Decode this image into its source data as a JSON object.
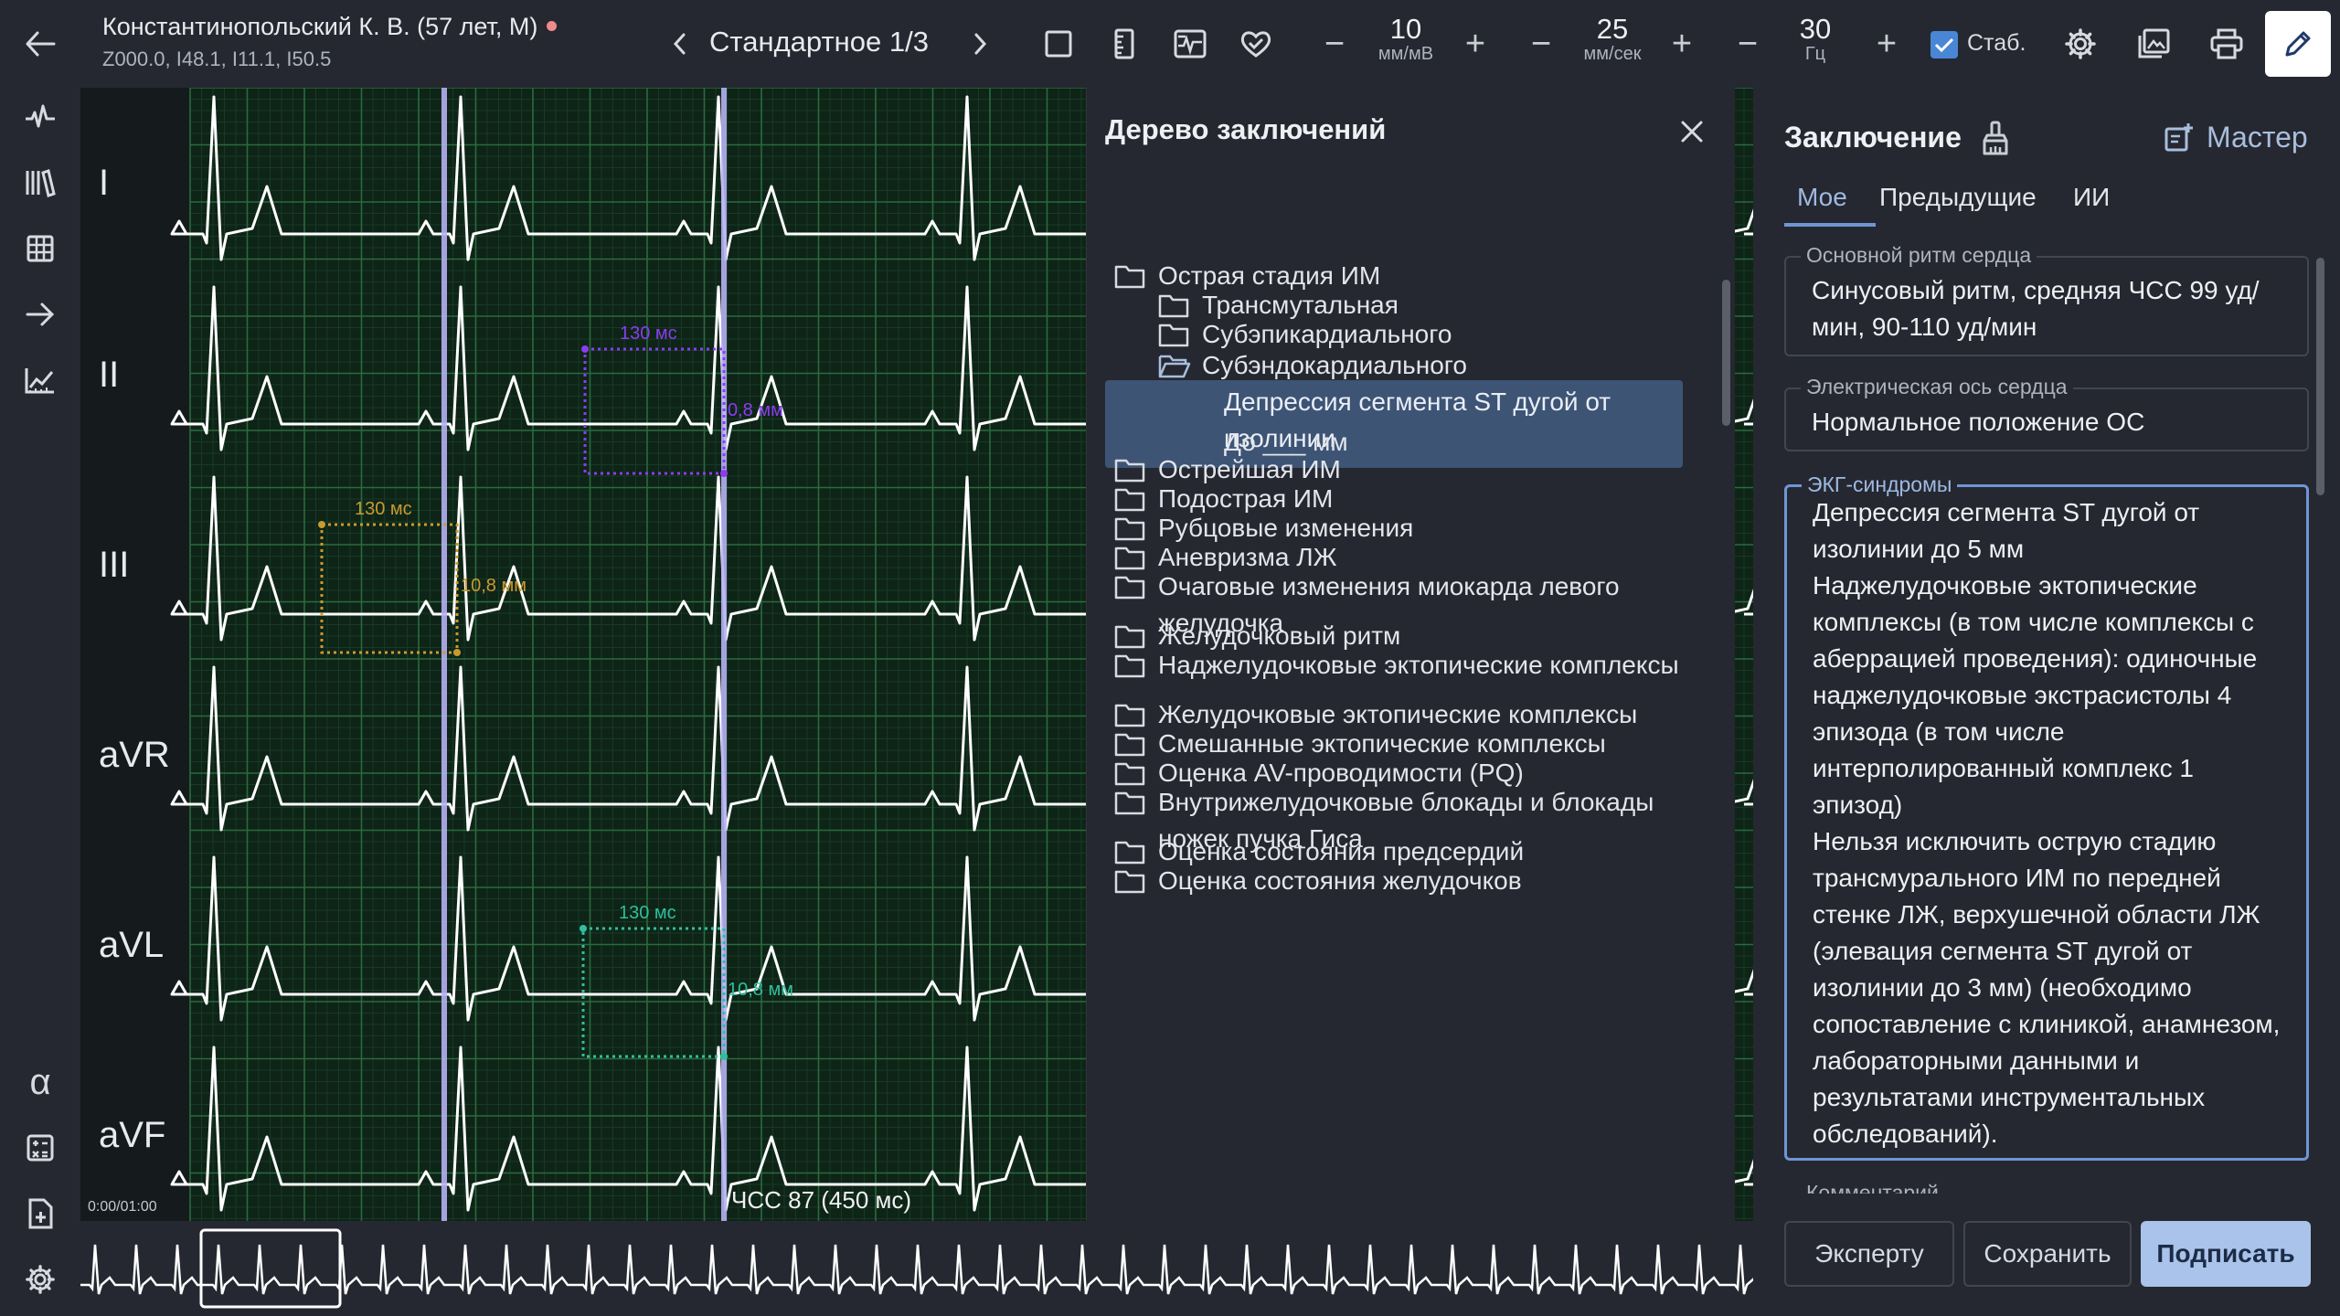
{
  "header": {
    "patient_name": "Константинопольский К. В. (57 лет, М)",
    "patient_codes": "Z000.0, I48.1, I11.1, I50.5",
    "status_color": "#f08a8a",
    "layout_name": "Стандартное 1/3",
    "gain": {
      "value": "10",
      "unit": "мм/мВ"
    },
    "speed": {
      "value": "25",
      "unit": "мм/сек"
    },
    "filter": {
      "value": "30",
      "unit": "Гц"
    },
    "stab_label": "Стаб.",
    "stab_checked": true,
    "icons": [
      "back-arrow-icon",
      "chevron-left-icon",
      "chevron-right-icon",
      "square-icon",
      "ruler-icon",
      "compare-icon",
      "heart-check-icon",
      "minus-icon",
      "plus-icon",
      "checkbox-icon",
      "gear-icon",
      "image-export-icon",
      "printer-icon",
      "pencil-icon"
    ]
  },
  "left_rail": {
    "icons": [
      "ecg-wave-icon",
      "library-icon",
      "grid-icon",
      "arrow-right-icon",
      "chart-trend-icon",
      "alpha-icon",
      "calculator-icon",
      "file-export-icon",
      "gear-icon"
    ],
    "alpha_glyph": "α"
  },
  "ecg": {
    "leads": [
      "I",
      "II",
      "III",
      "aVR",
      "aVL",
      "aVF"
    ],
    "time_position": "0:00/01:00",
    "heart_rate": "ЧСС 87 (450 мс)",
    "measurements": [
      {
        "lead": "II",
        "color": "#8b3cf0",
        "time": "130 мс",
        "amplitude": "0,8 мм"
      },
      {
        "lead": "III",
        "color": "#c99a2e",
        "time": "130 мс",
        "amplitude": "10,8 мм"
      },
      {
        "lead": "aVL",
        "color": "#2fbf9c",
        "time": "130 мс",
        "amplitude": "10,8 мм"
      }
    ],
    "grid_color": "#1c4a2a",
    "trace_color": "#ffffff",
    "cursor_color": "#b7b0f5"
  },
  "tree": {
    "title": "Дерево заключений",
    "items": [
      {
        "label": "Острая стадия ИМ",
        "level": 0,
        "icon": "folder-icon"
      },
      {
        "label": "Трансмутальная",
        "level": 1,
        "icon": "folder-icon"
      },
      {
        "label": "Субэпикардиального",
        "level": 1,
        "icon": "folder-icon"
      },
      {
        "label": "Субэндокардиального",
        "level": 1,
        "icon": "folder-open-icon"
      },
      {
        "label": "Депрессия сегмента ST дугой от изолинии",
        "level": 2,
        "icon": "",
        "selected": true
      },
      {
        "label": "До ___ мм",
        "level": 2,
        "icon": ""
      },
      {
        "label": "Острейшая ИМ",
        "level": 0,
        "icon": "folder-icon"
      },
      {
        "label": "Подострая ИМ",
        "level": 0,
        "icon": "folder-icon"
      },
      {
        "label": "Рубцовые изменения",
        "level": 0,
        "icon": "folder-icon"
      },
      {
        "label": "Аневризма ЛЖ",
        "level": 0,
        "icon": "folder-icon"
      },
      {
        "label": "Очаговые изменения миокарда левого желудочка",
        "level": 0,
        "icon": "folder-icon"
      },
      {
        "label": "Желудочковый ритм",
        "level": 0,
        "icon": "folder-icon"
      },
      {
        "label": "Наджелудочковые эктопические комплексы",
        "level": 0,
        "icon": "folder-icon"
      },
      {
        "label": "Желудочковые эктопические комплексы",
        "level": 0,
        "icon": "folder-icon"
      },
      {
        "label": "Смешанные эктопические комплексы",
        "level": 0,
        "icon": "folder-icon"
      },
      {
        "label": "Оценка AV-проводимости (PQ)",
        "level": 0,
        "icon": "folder-icon"
      },
      {
        "label": "Внутрижелудочковые блокады и блокады ножек пучка Гиса",
        "level": 0,
        "icon": "folder-icon"
      },
      {
        "label": "Оценка состояния предсердий",
        "level": 0,
        "icon": "folder-icon"
      },
      {
        "label": "Оценка состояния желудочков",
        "level": 0,
        "icon": "folder-icon"
      }
    ]
  },
  "conclusion": {
    "title": "Заключение",
    "master_label": "Мастер",
    "tabs": [
      "Мое",
      "Предыдущие",
      "ИИ"
    ],
    "active_tab": "Мое",
    "fields": [
      {
        "label": "Основной ритм сердца",
        "value": "Синусовый ритм, средняя ЧСС 99 уд/мин, 90-110 уд/мин"
      },
      {
        "label": "Электрическая ось сердца",
        "value": "Нормальное положение ОС"
      },
      {
        "label": "ЭКГ-синдромы",
        "value": "Депрессия сегмента ST дугой от изолинии до 5 мм\nНаджелудочковые эктопические комплексы (в том числе комплексы с аберрацией проведения): одиночные наджелудочковые экстрасистолы 4 эпизода (в том числе интерполированный комплекс 1 эпизод)\nНельзя исключить острую стадию трансмурального ИМ по передней стенке ЛЖ, верхушечной области ЛЖ (элевация сегмента ST дугой от изолинии до 3 мм) (необходимо сопоставление с клиникой, анамнезом, лабораторными данными и результатами инструментальных обследований)."
      }
    ],
    "comment_label": "Комментарий",
    "buttons": {
      "expert": "Эксперту",
      "save": "Сохранить",
      "sign": "Подписать"
    }
  }
}
